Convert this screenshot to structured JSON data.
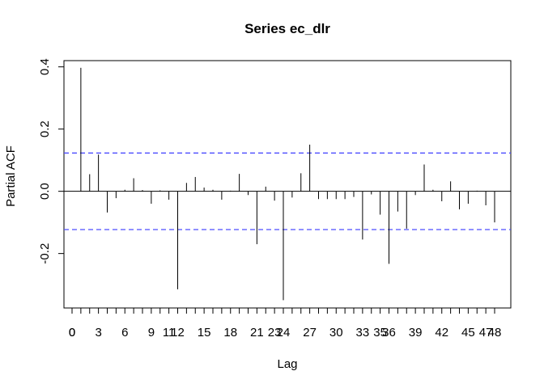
{
  "chart_data": {
    "type": "bar",
    "title": "Series  ec_dlr",
    "xlabel": "Lag",
    "ylabel": "Partial ACF",
    "xlim": [
      0,
      48
    ],
    "ylim": [
      -0.375,
      0.42
    ],
    "x_ticks": [
      "0",
      "0",
      "3",
      "6",
      "9",
      "11",
      "12",
      "15",
      "18",
      "21",
      "23",
      "24",
      "27",
      "30",
      "33",
      "35",
      "36",
      "39",
      "42",
      "45",
      "47",
      "48"
    ],
    "x_tick_values": [
      0,
      0,
      3,
      6,
      9,
      11,
      12,
      15,
      18,
      21,
      23,
      24,
      27,
      30,
      33,
      35,
      36,
      39,
      42,
      45,
      47,
      48
    ],
    "y_ticks": [
      "-0.2",
      "0.0",
      "0.2",
      "0.4"
    ],
    "y_tick_values": [
      -0.2,
      0.0,
      0.2,
      0.4
    ],
    "confidence_bound": 0.123,
    "confidence_color": "#4D4DFF",
    "x": [
      1,
      2,
      3,
      4,
      5,
      6,
      7,
      8,
      9,
      10,
      11,
      12,
      13,
      14,
      15,
      16,
      17,
      18,
      19,
      20,
      21,
      22,
      23,
      24,
      25,
      26,
      27,
      28,
      29,
      30,
      31,
      32,
      33,
      34,
      35,
      36,
      37,
      38,
      39,
      40,
      41,
      42,
      43,
      44,
      45,
      46,
      47,
      48
    ],
    "values": [
      0.397,
      0.055,
      0.118,
      -0.068,
      -0.022,
      0.005,
      0.042,
      0.004,
      -0.04,
      0.003,
      -0.027,
      -0.315,
      0.027,
      0.046,
      0.012,
      0.005,
      -0.027,
      0.002,
      0.056,
      -0.012,
      -0.17,
      0.015,
      -0.03,
      -0.35,
      -0.02,
      0.058,
      0.15,
      -0.025,
      -0.025,
      -0.025,
      -0.025,
      -0.018,
      -0.155,
      -0.01,
      -0.075,
      -0.233,
      -0.065,
      -0.12,
      -0.012,
      0.086,
      0.005,
      -0.032,
      0.032,
      -0.058,
      -0.04,
      0.002,
      -0.045,
      -0.1
    ],
    "grid": false,
    "legend": "none"
  }
}
